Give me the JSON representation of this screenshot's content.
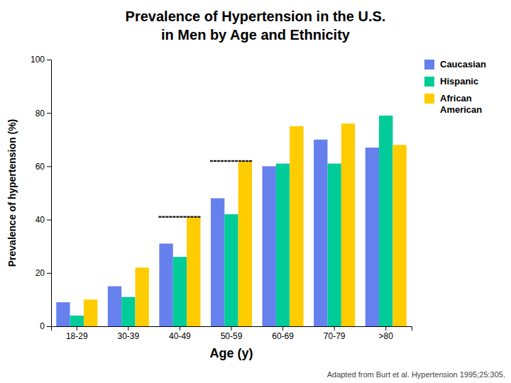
{
  "chart_data": {
    "type": "bar",
    "title": "Prevalence of Hypertension in the U.S.",
    "subtitle": "in Men  by Age  and Ethnicity",
    "x_label": "Age (y)",
    "y_label": "Prevalence of hypertension (%)",
    "categories": [
      "18-29",
      "30-39",
      "40-49",
      "50-59",
      "60-69",
      "70-79",
      ">80"
    ],
    "series": [
      {
        "name": "Caucasian",
        "color": "#6680ee",
        "values": [
          9,
          15,
          31,
          48,
          60,
          70,
          67
        ]
      },
      {
        "name": "Hispanic",
        "color": "#00cc99",
        "values": [
          4,
          11,
          26,
          42,
          61,
          61,
          79
        ]
      },
      {
        "name": "African\nAmerican",
        "color": "#ffcc00",
        "values": [
          10,
          22,
          41,
          62,
          75,
          76,
          68
        ]
      }
    ],
    "reference_lines": [
      {
        "category": "40-49",
        "value": 41,
        "line_style": "dotted"
      },
      {
        "category": "50-59",
        "value": 62,
        "line_style": "dotted"
      }
    ],
    "ylim": [
      0,
      100
    ],
    "yticks": [
      0,
      20,
      40,
      60,
      80,
      100
    ],
    "grid": false,
    "legend": "upper right",
    "footnote": "Adapted from Burt et al.  Hypertension  1995;25:305."
  }
}
